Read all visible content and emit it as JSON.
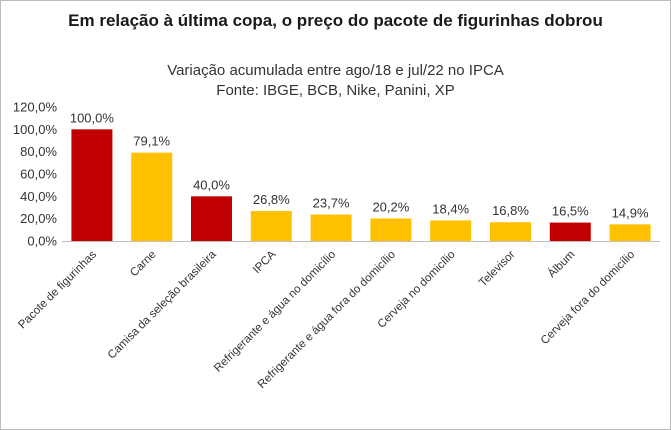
{
  "chart_data": {
    "type": "bar",
    "title": "Em relação à última copa, o preço do pacote de figurinhas dobrou",
    "subtitle": "Variação acumulada entre ago/18 e jul/22 no IPCA",
    "source": "Fonte: IBGE, BCB, Nike, Panini, XP",
    "categories": [
      "Pacote de figurinhas",
      "Carne",
      "Camisa da seleção brasileira",
      "IPCA",
      "Refrigerante e água no domicílio",
      "Refrigerante e água fora do domicílio",
      "Cerveja no domicílio",
      "Televisor",
      "Álbum",
      "Cerveja fora do domicílio"
    ],
    "values": [
      100.0,
      79.1,
      40.0,
      26.8,
      23.7,
      20.2,
      18.4,
      16.8,
      16.5,
      14.9
    ],
    "value_labels": [
      "100,0%",
      "79,1%",
      "40,0%",
      "26,8%",
      "23,7%",
      "20,2%",
      "18,4%",
      "16,8%",
      "16,5%",
      "14,9%"
    ],
    "bar_colors": [
      "#c00000",
      "#ffc000",
      "#c00000",
      "#ffc000",
      "#ffc000",
      "#ffc000",
      "#ffc000",
      "#ffc000",
      "#c00000",
      "#ffc000"
    ],
    "ylim": [
      0,
      120
    ],
    "yticks": [
      0,
      20,
      40,
      60,
      80,
      100,
      120
    ],
    "ytick_labels": [
      "0,0%",
      "20,0%",
      "40,0%",
      "60,0%",
      "80,0%",
      "100,0%",
      "120,0%"
    ],
    "grid": false,
    "legend": "none"
  }
}
